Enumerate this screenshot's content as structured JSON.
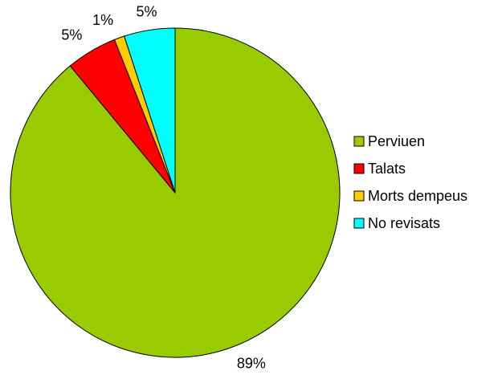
{
  "chart_data": {
    "type": "pie",
    "categories": [
      "Perviuen",
      "Talats",
      "Morts dempeus",
      "No revisats"
    ],
    "values": [
      89,
      5,
      1,
      5
    ],
    "value_labels": [
      "89%",
      "5%",
      "1%",
      "5%"
    ],
    "colors": [
      "#99cc00",
      "#ff0000",
      "#ffcc00",
      "#00ffff"
    ],
    "legend": "right"
  }
}
